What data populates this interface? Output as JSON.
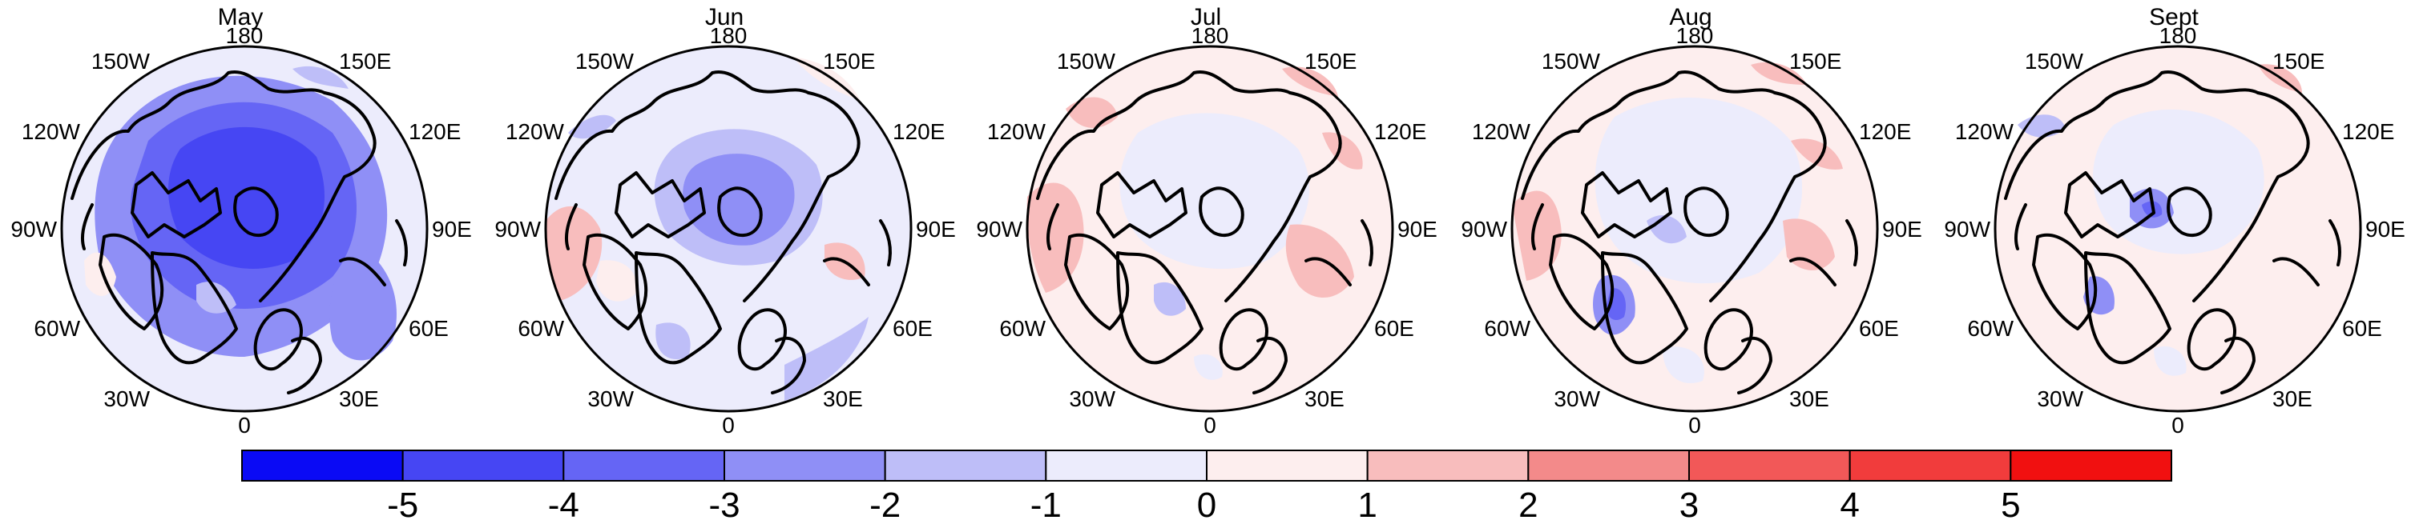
{
  "figure": {
    "panels": [
      {
        "title": "May",
        "longitude_labels": {
          "top": "180",
          "top_left": "150W",
          "top_right": "150E",
          "upper_left": "120W",
          "upper_right": "120E",
          "left": "90W",
          "right": "90E",
          "lower_left": "60W",
          "lower_right": "60E",
          "bottom_left": "30W",
          "bottom_right": "30E",
          "bottom": "0"
        }
      },
      {
        "title": "Jun",
        "longitude_labels": {
          "top": "180",
          "top_left": "150W",
          "top_right": "150E",
          "upper_left": "120W",
          "upper_right": "120E",
          "left": "90W",
          "right": "90E",
          "lower_left": "60W",
          "lower_right": "60E",
          "bottom_left": "30W",
          "bottom_right": "30E",
          "bottom": "0"
        }
      },
      {
        "title": "Jul",
        "longitude_labels": {
          "top": "180",
          "top_left": "150W",
          "top_right": "150E",
          "upper_left": "120W",
          "upper_right": "120E",
          "left": "90W",
          "right": "90E",
          "lower_left": "60W",
          "lower_right": "60E",
          "bottom_left": "30W",
          "bottom_right": "30E",
          "bottom": "0"
        }
      },
      {
        "title": "Aug",
        "longitude_labels": {
          "top": "180",
          "top_left": "150W",
          "top_right": "150E",
          "upper_left": "120W",
          "upper_right": "120E",
          "left": "90W",
          "right": "90E",
          "lower_left": "60W",
          "lower_right": "60E",
          "bottom_left": "30W",
          "bottom_right": "30E",
          "bottom": "0"
        }
      },
      {
        "title": "Sept",
        "longitude_labels": {
          "top": "180",
          "top_left": "150W",
          "top_right": "150E",
          "upper_left": "120W",
          "upper_right": "120E",
          "left": "90W",
          "right": "90E",
          "lower_left": "60W",
          "lower_right": "60E",
          "bottom_left": "30W",
          "bottom_right": "30E",
          "bottom": "0"
        }
      }
    ],
    "colorbar": {
      "ticks": [
        "-5",
        "-4",
        "-3",
        "-2",
        "-1",
        "0",
        "1",
        "2",
        "3",
        "4",
        "5"
      ],
      "colors": [
        "#0a0af5",
        "#4646f3",
        "#6565f5",
        "#8f8ff6",
        "#bebef8",
        "#ececfc",
        "#fdeeee",
        "#f8bdbd",
        "#f38a8a",
        "#f25858",
        "#f13c3c",
        "#f11010"
      ]
    }
  }
}
